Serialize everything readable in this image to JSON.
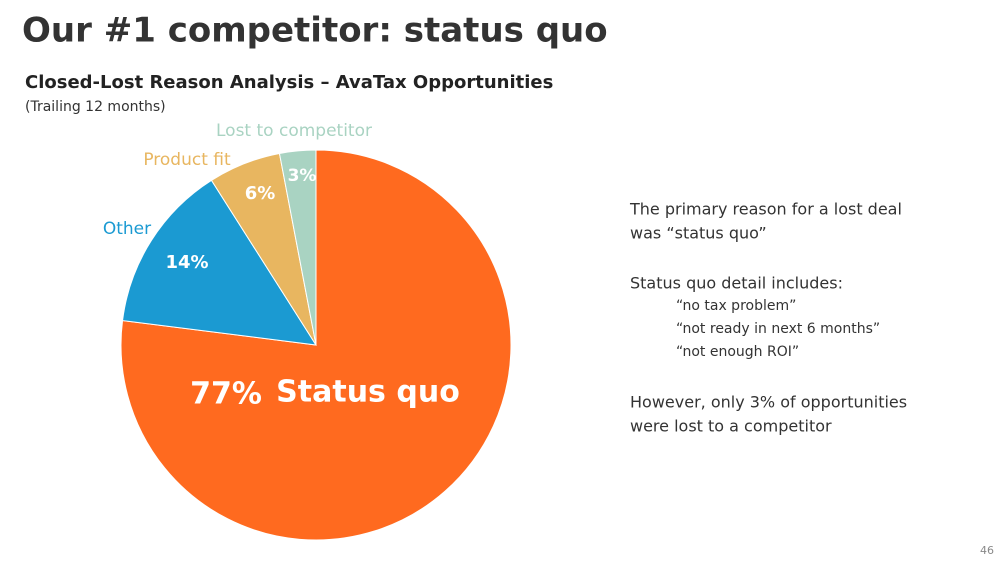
{
  "title": "Our #1 competitor:  status quo",
  "chart_data": {
    "type": "pie",
    "title": "Closed-Lost Reason Analysis – AvaTax Opportunities",
    "subtitle": "(Trailing 12 months)",
    "categories": [
      "Status quo",
      "Other",
      "Product fit",
      "Lost to competitor"
    ],
    "values": [
      77,
      14,
      6,
      3
    ],
    "value_labels": [
      "77%",
      "14%",
      "6%",
      "3%"
    ],
    "colors": [
      "#FF6A1F",
      "#1B9AD2",
      "#E8B660",
      "#A9D3C2"
    ]
  },
  "notes": [
    {
      "lines": [
        "The primary reason for a lost deal",
        "was “status quo”"
      ]
    },
    {
      "lines": [
        "Status quo detail includes:"
      ],
      "items": [
        "“no tax problem”",
        "“not ready in next 6 months”",
        "“not enough ROI”"
      ]
    },
    {
      "lines": [
        "However, only 3% of opportunities",
        "were lost to a competitor"
      ]
    }
  ],
  "page_number": "46"
}
